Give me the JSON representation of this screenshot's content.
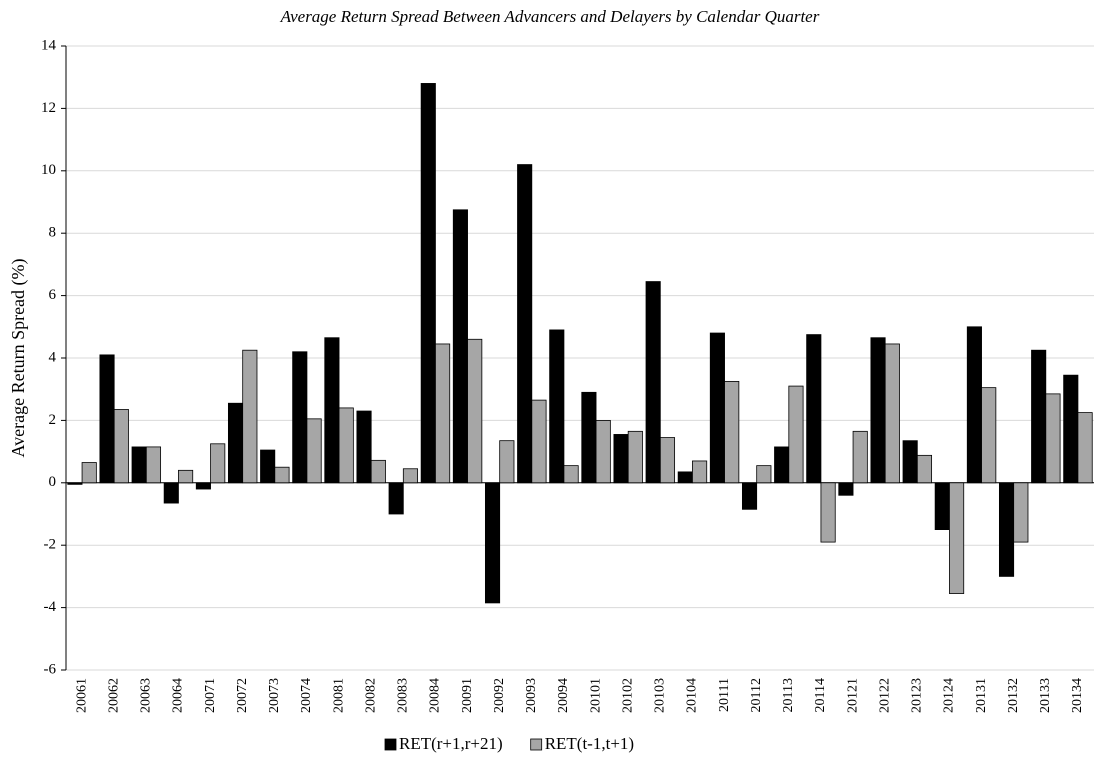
{
  "chart_data": {
    "type": "bar",
    "title": "Average Return Spread Between Advancers and Delayers by Calendar Quarter",
    "y_label": "Average Return Spread (%)",
    "categories": [
      "20061",
      "20062",
      "20063",
      "20064",
      "20071",
      "20072",
      "20073",
      "20074",
      "20081",
      "20082",
      "20083",
      "20084",
      "20091",
      "20092",
      "20093",
      "20094",
      "20101",
      "20102",
      "20103",
      "20104",
      "20111",
      "20112",
      "20113",
      "20114",
      "20121",
      "20122",
      "20123",
      "20124",
      "20131",
      "20132",
      "20133",
      "20134"
    ],
    "series": [
      {
        "name": "RET(r+1,r+21)",
        "color": "#000000",
        "values": [
          -0.05,
          4.1,
          1.15,
          -0.65,
          -0.2,
          2.55,
          1.05,
          4.2,
          4.65,
          2.3,
          -1.0,
          12.8,
          8.75,
          -3.85,
          10.2,
          4.9,
          2.9,
          1.55,
          6.45,
          0.35,
          4.8,
          -0.85,
          1.15,
          4.75,
          -0.4,
          4.65,
          1.35,
          -1.5,
          5.0,
          -3.0,
          4.25,
          3.45
        ]
      },
      {
        "name": "RET(t-1,t+1)",
        "color": "#a6a6a6",
        "values": [
          0.65,
          2.35,
          1.15,
          0.4,
          1.25,
          4.25,
          0.5,
          2.05,
          2.4,
          0.72,
          0.45,
          4.45,
          4.6,
          1.35,
          2.65,
          0.55,
          2.0,
          1.65,
          1.45,
          0.7,
          3.25,
          0.55,
          3.1,
          -1.9,
          1.65,
          4.45,
          0.88,
          -3.55,
          3.05,
          -1.9,
          2.85,
          2.25
        ]
      }
    ],
    "ylim": [
      -6,
      14
    ],
    "yticks": [
      -6,
      -4,
      -2,
      0,
      2,
      4,
      6,
      8,
      10,
      12,
      14
    ],
    "grid": true,
    "legend": "bottom"
  }
}
